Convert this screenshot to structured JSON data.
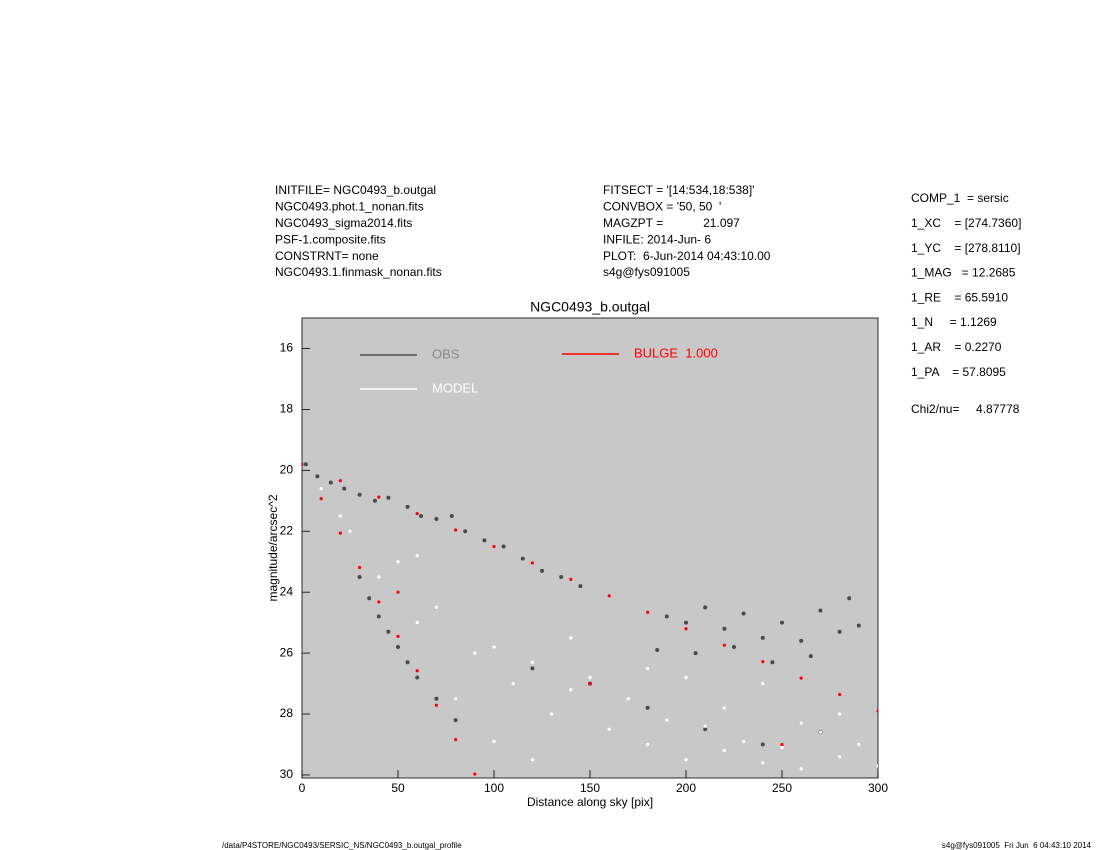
{
  "chart_data": {
    "type": "scatter",
    "title": "NGC0493_b.outgal",
    "x_label": "Distance along sky [pix]",
    "y_label": "magnitude/arcsec^2",
    "xlim": [
      0,
      300
    ],
    "ylim": [
      30.1,
      15
    ],
    "xticks": [
      0,
      50,
      100,
      150,
      200,
      250,
      300
    ],
    "yticks": [
      16,
      18,
      20,
      22,
      24,
      26,
      28,
      30
    ],
    "plot_background": "#c8c8c8",
    "info_left": [
      "INITFILE= NGC0493_b.outgal",
      "NGC0493.phot.1_nonan.fits",
      "NGC0493_sigma2014.fits",
      "PSF-1.composite.fits",
      "CONSTRNT= none",
      "NGC0493.1.finmask_nonan.fits"
    ],
    "info_mid": [
      "FITSECT = '[14:534,18:538]'",
      "CONVBOX = '50, 50  '",
      "MAGZPT =            21.097",
      "INFILE: 2014-Jun- 6",
      "PLOT:  6-Jun-2014 04:43:10.00",
      "s4g@fys091005"
    ],
    "info_right": [
      "COMP_1  = sersic",
      "1_XC    = [274.7360]",
      "1_YC    = [278.8110]",
      "1_MAG   = 12.2685",
      "1_RE    = 65.5910",
      "1_N     = 1.1269",
      "1_AR    = 0.2270",
      "1_PA    = 57.8095"
    ],
    "chi2": "Chi2/nu=     4.87778",
    "footer_left": "/data/P4STORE/NGC0493/SERSIC_NS/NGC0493_b.outgal_profile",
    "footer_right": "s4g@fys091005  Fri Jun  6 04:43:10 2014",
    "series": [
      {
        "name": "OBS",
        "color": "#4a4a4a",
        "x": [
          2,
          8,
          15,
          22,
          30,
          38,
          45,
          55,
          62,
          70,
          78,
          85,
          95,
          105,
          115,
          125,
          135,
          145,
          30,
          35,
          40,
          45,
          50,
          55,
          60,
          70,
          80,
          190,
          200,
          210,
          220,
          230,
          240,
          250,
          260,
          270,
          280,
          290,
          185,
          205,
          225,
          245,
          265,
          285,
          120,
          150,
          180,
          210,
          240,
          270
        ],
        "values": [
          19.8,
          20.2,
          20.4,
          20.6,
          20.8,
          21.0,
          20.9,
          21.2,
          21.5,
          21.6,
          21.5,
          22.0,
          22.3,
          22.5,
          22.9,
          23.3,
          23.5,
          23.8,
          23.5,
          24.2,
          24.8,
          25.3,
          25.8,
          26.3,
          26.8,
          27.5,
          28.2,
          24.8,
          25.0,
          24.5,
          25.2,
          24.7,
          25.5,
          25.0,
          25.6,
          24.6,
          25.3,
          25.1,
          25.9,
          26.0,
          25.8,
          26.3,
          26.1,
          24.2,
          26.5,
          27.0,
          27.8,
          28.5,
          29.0,
          28.6
        ]
      },
      {
        "name": "MODEL",
        "color": "#ffffff",
        "x": [
          10,
          20,
          25,
          40,
          50,
          60,
          70,
          80,
          90,
          100,
          110,
          120,
          130,
          140,
          150,
          160,
          170,
          180,
          190,
          200,
          210,
          220,
          230,
          240,
          250,
          260,
          270,
          280,
          290,
          300,
          60,
          100,
          140,
          180,
          220,
          260,
          120,
          200,
          240,
          280
        ],
        "values": [
          20.6,
          21.5,
          22,
          23.5,
          23,
          25,
          24.5,
          27.5,
          26,
          25.8,
          27,
          26.3,
          28,
          27.2,
          26.8,
          28.5,
          27.5,
          29,
          28.2,
          29.5,
          28.4,
          29.2,
          28.9,
          29.6,
          29.1,
          29.8,
          28.6,
          29.4,
          29.0,
          29.7,
          22.8,
          28.9,
          25.5,
          26.5,
          27.8,
          28.3,
          29.5,
          26.8,
          27.0,
          28.0
        ]
      },
      {
        "name": "BULGE  1.000",
        "color": "#ff0000",
        "x": [
          0,
          20,
          40,
          60,
          80,
          100,
          120,
          140,
          160,
          180,
          200,
          220,
          240,
          260,
          280,
          300,
          10,
          20,
          30,
          40,
          50,
          60,
          70,
          80,
          90,
          50,
          150,
          250
        ],
        "values": [
          19.8,
          20.34,
          20.88,
          21.42,
          21.96,
          22.5,
          23.04,
          23.58,
          24.12,
          24.66,
          25.2,
          25.74,
          26.28,
          26.82,
          27.36,
          27.9,
          20.93,
          22.06,
          23.19,
          24.32,
          25.45,
          26.58,
          27.71,
          28.84,
          29.97,
          24,
          27,
          29
        ]
      }
    ]
  }
}
